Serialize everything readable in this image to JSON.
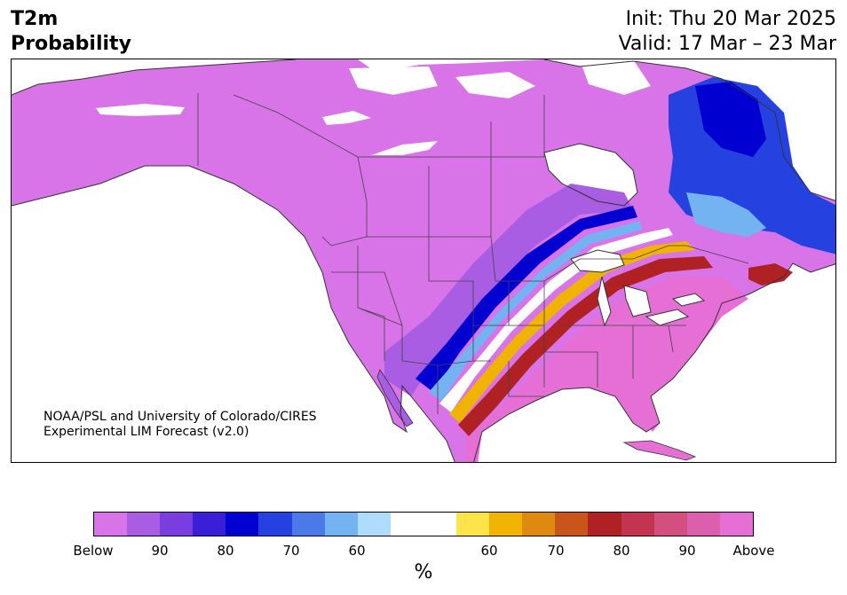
{
  "title": {
    "line1": "T2m",
    "line2": "Probability"
  },
  "init": "Init: Thu 20 Mar 2025",
  "valid": "Valid: 17 Mar – 23 Mar",
  "credit": {
    "line1": "NOAA/PSL and University of Colorado/CIRES",
    "line2": "Experimental LIM Forecast (v2.0)"
  },
  "colorbar": {
    "colors": [
      "#d873e8",
      "#a95de3",
      "#7a3ee0",
      "#3a1fd6",
      "#0000d0",
      "#2541e0",
      "#4b7ae8",
      "#74b3f2",
      "#aedcfd",
      "#ffffff",
      "#ffffff",
      "#ffe34a",
      "#f0b400",
      "#de8a10",
      "#c8561a",
      "#b02124",
      "#c23450",
      "#d24f7f",
      "#dc5fae",
      "#e66fd6"
    ],
    "labels": [
      "Below",
      "90",
      "80",
      "70",
      "60",
      "60",
      "70",
      "80",
      "90",
      "Above"
    ],
    "unit": "%"
  },
  "map": {
    "land_fill": "#d873e8",
    "above_fill": "#e66fd6",
    "border_color": "#333333"
  }
}
